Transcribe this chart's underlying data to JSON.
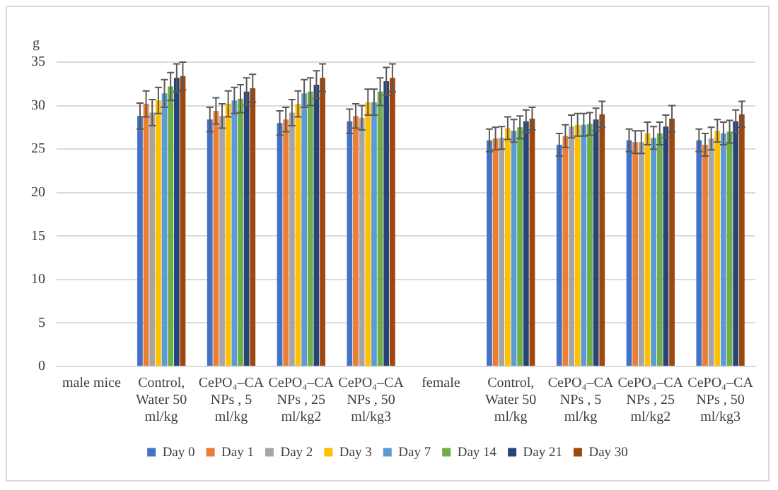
{
  "chart_data": {
    "type": "bar",
    "ylabel": "g",
    "categories": [
      "male mice",
      "Control, Water 50 ml/kg",
      "CePO₄–CA NPs , 5 ml/kg",
      "CePO₄–CA NPs , 25 ml/kg2",
      "CePO₄–CA NPs , 50 ml/kg3",
      "female",
      "Control, Water 50 ml/kg",
      "CePO₄–CA NPs , 5 ml/kg",
      "CePO₄–CA NPs , 25 ml/kg2",
      "CePO₄–CA NPs , 50 ml/kg3"
    ],
    "series": [
      {
        "name": "Day 0",
        "color": "#4472c4",
        "values": [
          null,
          28.8,
          28.4,
          28.0,
          28.2,
          null,
          26.0,
          25.5,
          26.0,
          26.0
        ],
        "errors": [
          null,
          1.5,
          1.4,
          1.4,
          1.4,
          null,
          1.3,
          1.3,
          1.3,
          1.3
        ]
      },
      {
        "name": "Day 1",
        "color": "#ed7d31",
        "values": [
          null,
          30.2,
          29.4,
          28.4,
          28.8,
          null,
          26.2,
          26.5,
          25.8,
          25.5
        ],
        "errors": [
          null,
          1.5,
          1.5,
          1.4,
          1.4,
          null,
          1.3,
          1.3,
          1.3,
          1.3
        ]
      },
      {
        "name": "Day 2",
        "color": "#a5a5a5",
        "values": [
          null,
          29.2,
          28.8,
          29.2,
          28.6,
          null,
          26.3,
          27.6,
          25.8,
          26.2
        ],
        "errors": [
          null,
          1.5,
          1.4,
          1.5,
          1.4,
          null,
          1.3,
          1.3,
          1.3,
          1.3
        ]
      },
      {
        "name": "Day 3",
        "color": "#ffc000",
        "values": [
          null,
          30.6,
          30.2,
          30.2,
          30.4,
          null,
          27.4,
          27.8,
          26.8,
          27.1
        ],
        "errors": [
          null,
          1.5,
          1.5,
          1.5,
          1.5,
          null,
          1.3,
          1.3,
          1.3,
          1.3
        ]
      },
      {
        "name": "Day 7",
        "color": "#5b9bd5",
        "values": [
          null,
          31.4,
          30.6,
          31.4,
          30.4,
          null,
          27.1,
          27.8,
          26.3,
          26.8
        ],
        "errors": [
          null,
          1.6,
          1.5,
          1.6,
          1.5,
          null,
          1.3,
          1.3,
          1.3,
          1.3
        ]
      },
      {
        "name": "Day 14",
        "color": "#70ad47",
        "values": [
          null,
          32.2,
          30.8,
          31.6,
          31.6,
          null,
          27.5,
          27.9,
          26.8,
          27.0
        ],
        "errors": [
          null,
          1.6,
          1.6,
          1.6,
          1.6,
          null,
          1.3,
          1.3,
          1.3,
          1.3
        ]
      },
      {
        "name": "Day 21",
        "color": "#264478",
        "values": [
          null,
          33.2,
          31.6,
          32.4,
          32.8,
          null,
          28.2,
          28.4,
          27.6,
          28.2
        ],
        "errors": [
          null,
          1.6,
          1.6,
          1.6,
          1.6,
          null,
          1.3,
          1.3,
          1.3,
          1.3
        ]
      },
      {
        "name": "Day 30",
        "color": "#9e480e",
        "values": [
          null,
          33.4,
          32.0,
          33.2,
          33.2,
          null,
          28.5,
          29.0,
          28.5,
          29.0
        ],
        "errors": [
          null,
          1.6,
          1.6,
          1.6,
          1.6,
          null,
          1.3,
          1.5,
          1.5,
          1.5
        ]
      }
    ],
    "ylim": [
      0,
      35
    ],
    "yticks": [
      0,
      5,
      10,
      15,
      20,
      25,
      30,
      35
    ],
    "grid": "y",
    "legend": "bottom"
  }
}
